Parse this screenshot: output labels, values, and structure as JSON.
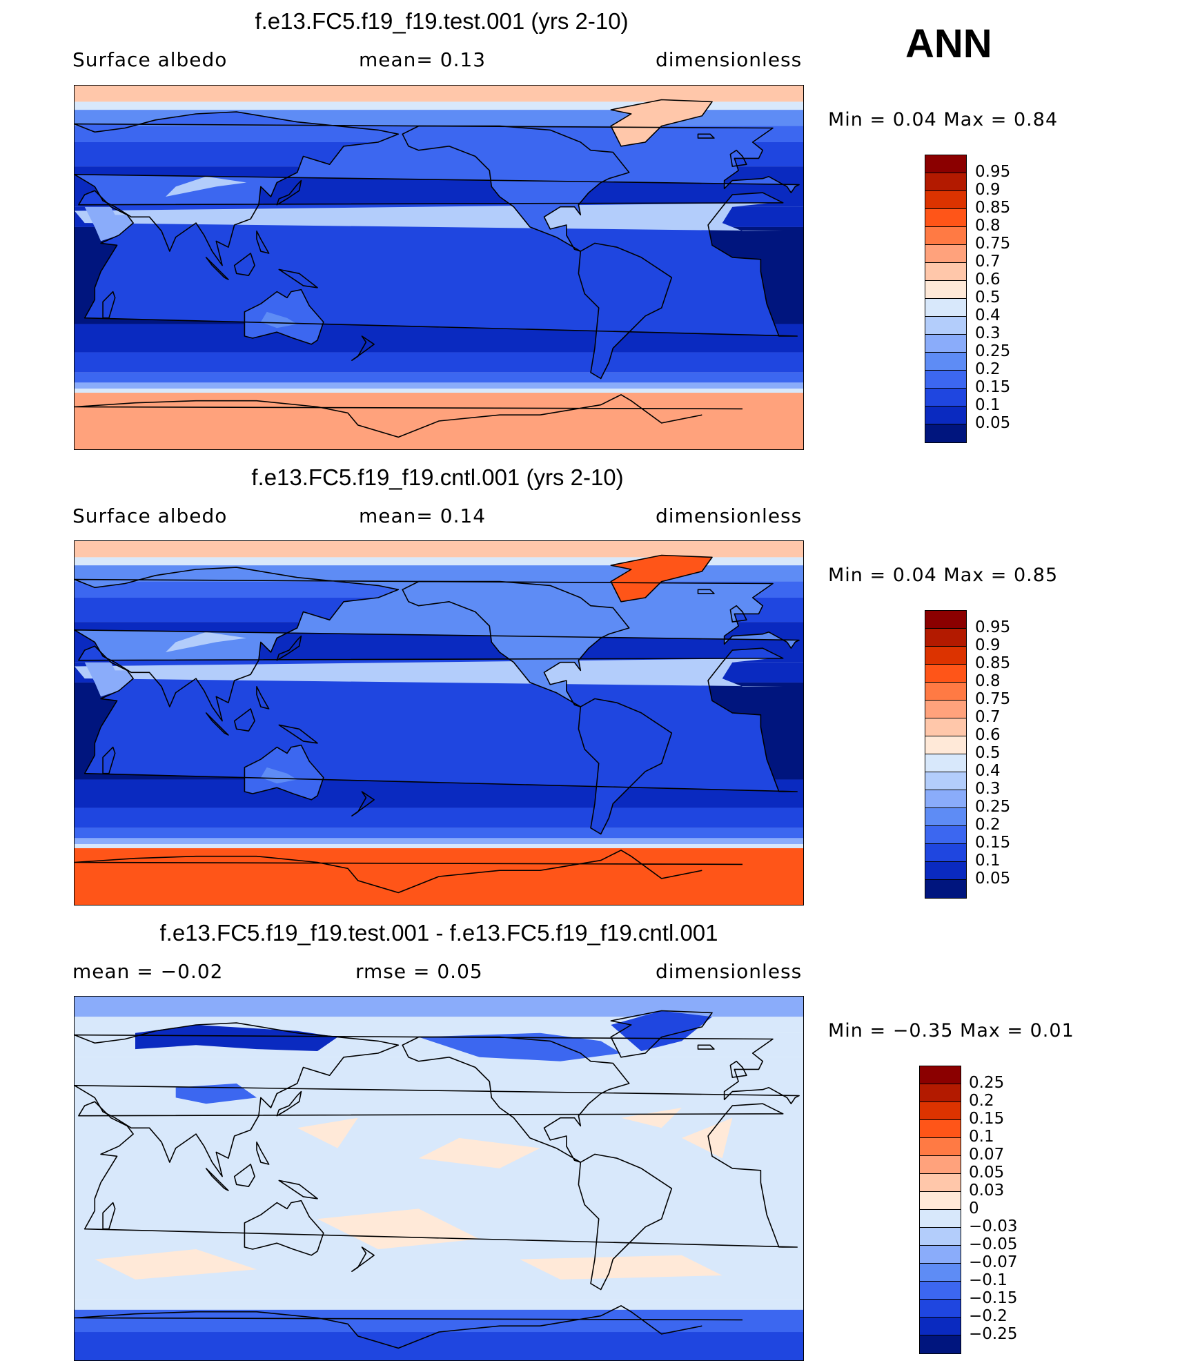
{
  "season": "ANN",
  "panels": [
    {
      "title": "f.e13.FC5.f19_f19.test.001 (yrs 2-10)",
      "left_text": "Surface albedo",
      "center_text": "mean=    0.13",
      "right_text": "dimensionless",
      "minmax": "Min =     0.04  Max =     0.84",
      "colorbar_labels": [
        "0.95",
        "0.9",
        "0.85",
        "0.8",
        "0.75",
        "0.7",
        "0.6",
        "0.5",
        "0.4",
        "0.3",
        "0.25",
        "0.2",
        "0.15",
        "0.1",
        "0.05"
      ],
      "colors": [
        "#8b0000",
        "#b31a00",
        "#dc3300",
        "#ff5518",
        "#ff7a44",
        "#ffa27c",
        "#ffc7aa",
        "#ffe9d8",
        "#d8e8fb",
        "#b3cdfb",
        "#8aacfa",
        "#5e8cf5",
        "#3c67f0",
        "#1f46e0",
        "#0a2ac0",
        "#00157e"
      ],
      "surface": "test"
    },
    {
      "title": "f.e13.FC5.f19_f19.cntl.001 (yrs 2-10)",
      "left_text": "Surface albedo",
      "center_text": "mean=    0.14",
      "right_text": "dimensionless",
      "minmax": "Min =     0.04  Max =     0.85",
      "colorbar_labels": [
        "0.95",
        "0.9",
        "0.85",
        "0.8",
        "0.75",
        "0.7",
        "0.6",
        "0.5",
        "0.4",
        "0.3",
        "0.25",
        "0.2",
        "0.15",
        "0.1",
        "0.05"
      ],
      "colors": [
        "#8b0000",
        "#b31a00",
        "#dc3300",
        "#ff5518",
        "#ff7a44",
        "#ffa27c",
        "#ffc7aa",
        "#ffe9d8",
        "#d8e8fb",
        "#b3cdfb",
        "#8aacfa",
        "#5e8cf5",
        "#3c67f0",
        "#1f46e0",
        "#0a2ac0",
        "#00157e"
      ],
      "surface": "cntl"
    },
    {
      "title": "f.e13.FC5.f19_f19.test.001 - f.e13.FC5.f19_f19.cntl.001",
      "left_text": "mean =    −0.02",
      "center_text": "rmse =    0.05",
      "right_text": "dimensionless",
      "minmax": "Min =   −0.35  Max =     0.01",
      "colorbar_labels": [
        "0.25",
        "0.2",
        "0.15",
        "0.1",
        "0.07",
        "0.05",
        "0.03",
        "0",
        "−0.03",
        "−0.05",
        "−0.07",
        "−0.1",
        "−0.15",
        "−0.2",
        "−0.25"
      ],
      "colors": [
        "#8b0000",
        "#b31a00",
        "#dc3300",
        "#ff5518",
        "#ff7a44",
        "#ffa27c",
        "#ffc7aa",
        "#ffe9d8",
        "#d8e8fb",
        "#b3cdfb",
        "#8aacfa",
        "#5e8cf5",
        "#3c67f0",
        "#1f46e0",
        "#0a2ac0",
        "#00157e"
      ],
      "surface": "diff"
    }
  ]
}
